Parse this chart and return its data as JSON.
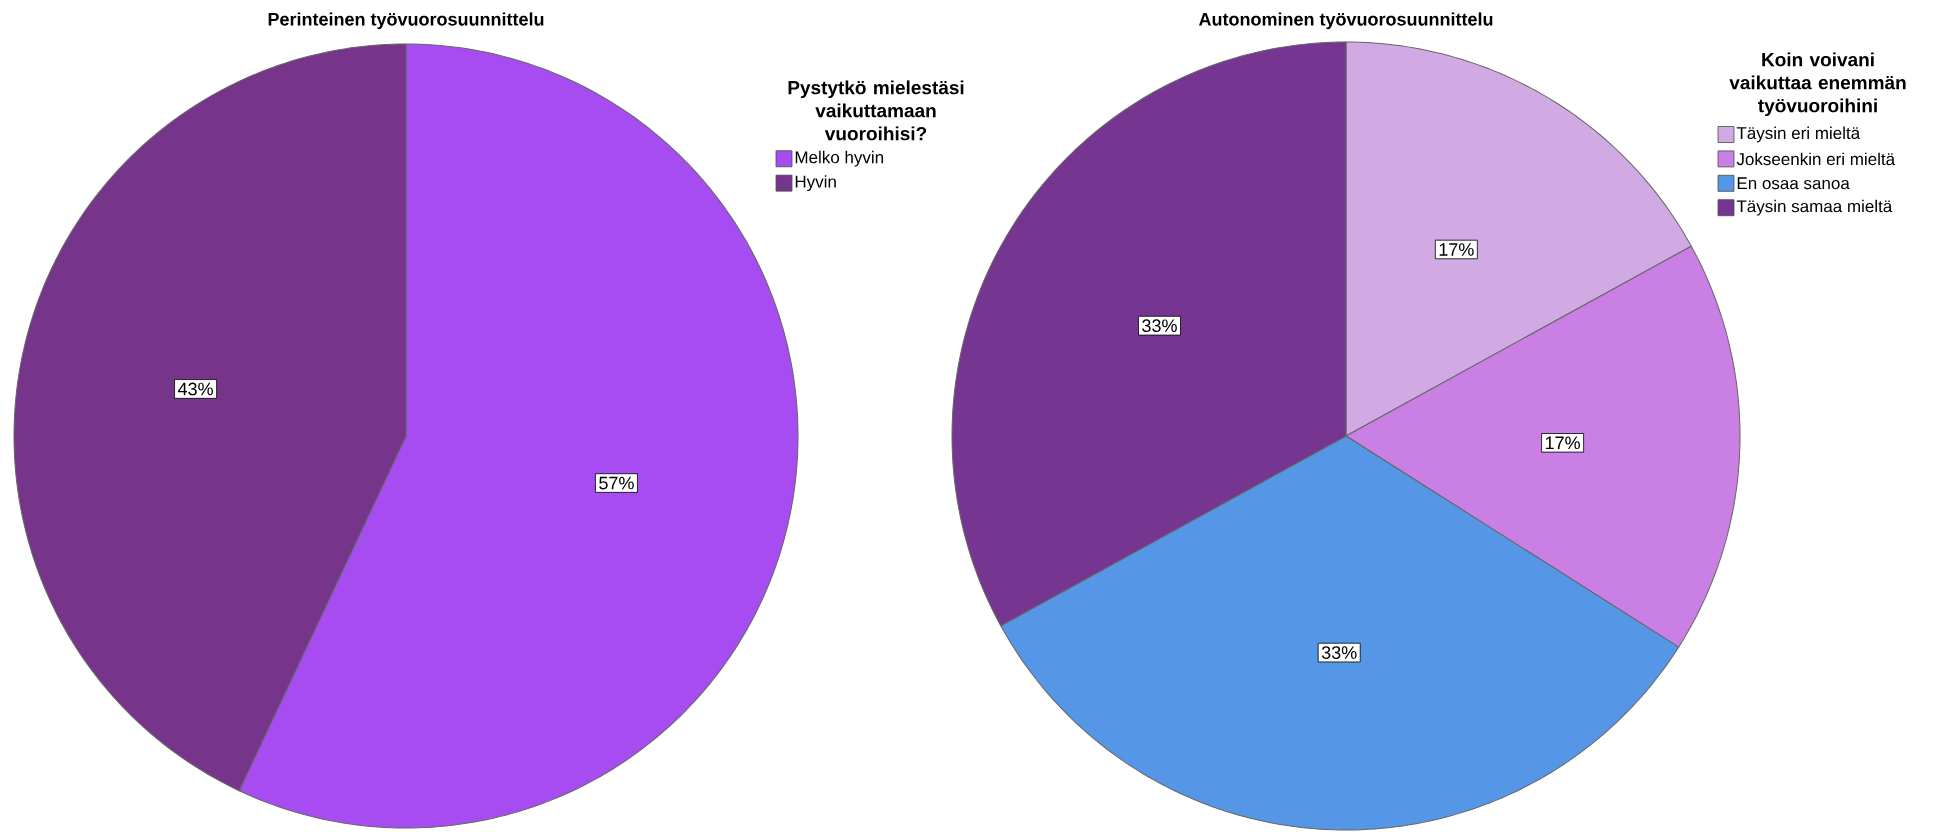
{
  "chart_data": [
    {
      "type": "pie",
      "title": "Perinteinen työvuorosuunnittelu",
      "legend_title": "Pystytkö mielestäsi vaikuttamaan vuoroihisi?",
      "legend": "right",
      "categories": [
        "Melko hyvin",
        "Hyvin"
      ],
      "values": [
        57,
        43
      ],
      "colors": [
        "#a64cf0",
        "#76358b"
      ],
      "value_labels": [
        "57%",
        "43%"
      ]
    },
    {
      "type": "pie",
      "title": "Autonominen työvuorosuunnittelu",
      "legend_title": "Koin voivani vaikuttaa enemmän työvuoroihini",
      "legend": "right",
      "categories": [
        "Täysin eri mieltä",
        "Jokseenkin eri mieltä",
        "En osaa sanoa",
        "Täysin samaa mieltä"
      ],
      "values": [
        17,
        17,
        33,
        33
      ],
      "colors": [
        "#d1a9e3",
        "#c97fe3",
        "#5597e6",
        "#763590"
      ],
      "value_labels": [
        "17%",
        "17%",
        "33%",
        "33%"
      ]
    }
  ]
}
